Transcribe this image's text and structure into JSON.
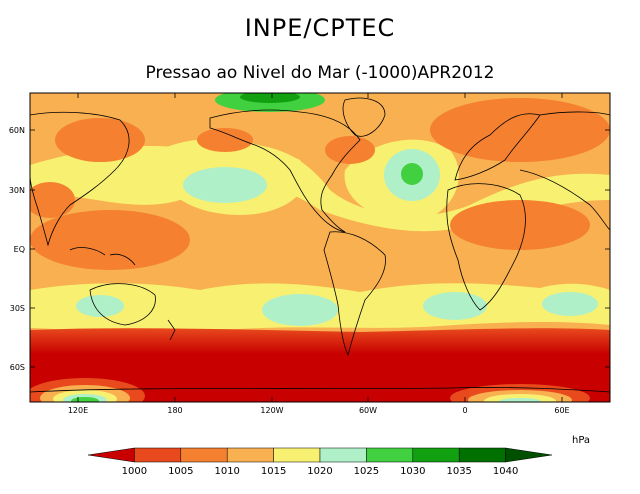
{
  "title": "INPE/CPTEC",
  "subtitle": "Pressao ao Nivel do Mar (-1000)APR2012",
  "map": {
    "lat_ticks": [
      "60N",
      "30N",
      "EQ",
      "30S",
      "60S"
    ],
    "lon_ticks": [
      "120E",
      "180",
      "120W",
      "60W",
      "0",
      "60E"
    ]
  },
  "colorbar": {
    "unit": "hPa",
    "levels": [
      "1000",
      "1005",
      "1010",
      "1015",
      "1020",
      "1025",
      "1030",
      "1035",
      "1040"
    ],
    "colors": [
      "#c80000",
      "#e84a1e",
      "#f48030",
      "#f8b050",
      "#f8f070",
      "#b0f0c8",
      "#40d040",
      "#10a010",
      "#007000",
      "#005000"
    ]
  }
}
